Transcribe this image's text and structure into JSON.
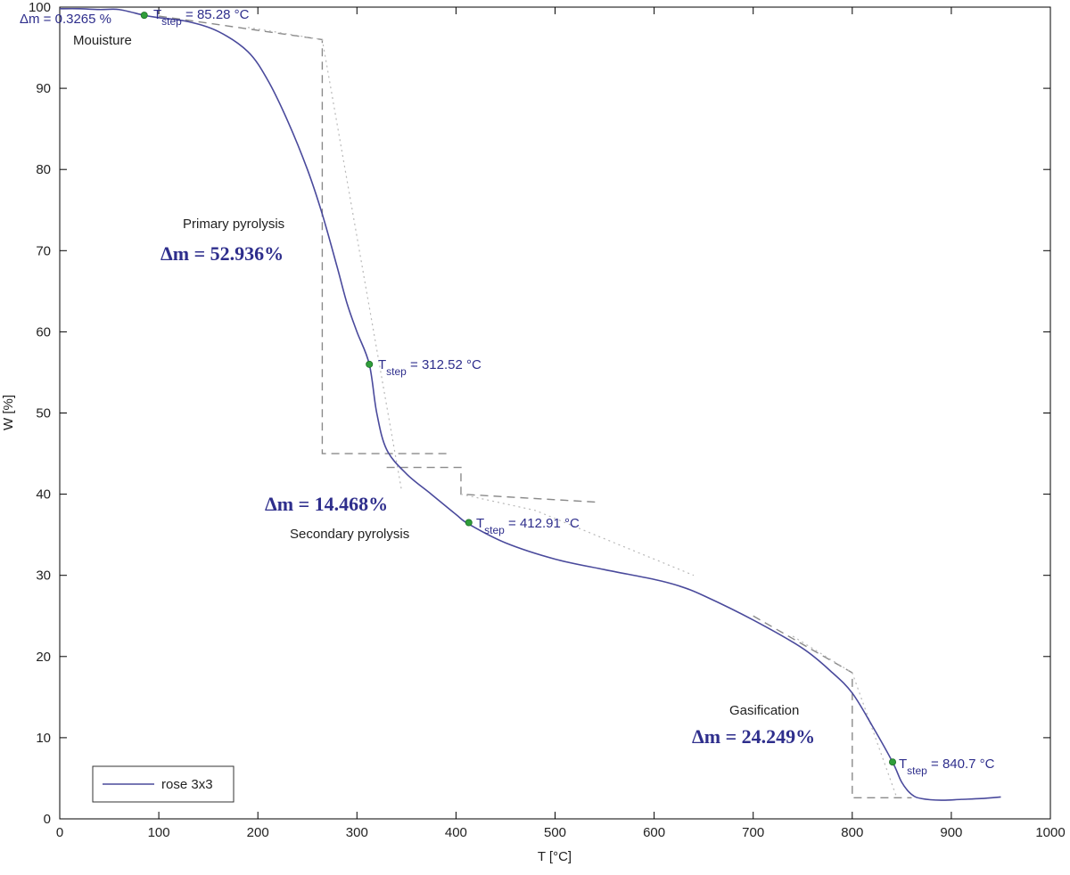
{
  "chart_data": {
    "type": "line",
    "xlabel": "T [°C]",
    "ylabel": "W [%]",
    "xlim": [
      0,
      1000
    ],
    "ylim": [
      0,
      100
    ],
    "xticks": [
      0,
      100,
      200,
      300,
      400,
      500,
      600,
      700,
      800,
      900,
      1000
    ],
    "yticks": [
      0,
      10,
      20,
      30,
      40,
      50,
      60,
      70,
      80,
      90,
      100
    ],
    "grid": false,
    "legend_position": "bottom-left",
    "series": [
      {
        "name": "rose 3x3",
        "color": "#4a4a9c",
        "x": [
          0,
          20,
          40,
          60,
          85,
          100,
          130,
          160,
          190,
          210,
          230,
          250,
          265,
          280,
          290,
          300,
          312.5,
          320,
          330,
          350,
          375,
          400,
          413,
          450,
          500,
          550,
          600,
          625,
          650,
          700,
          750,
          780,
          800,
          820,
          840.7,
          850,
          860,
          870,
          890,
          910,
          930,
          950
        ],
        "y": [
          99.8,
          99.8,
          99.7,
          99.7,
          99.0,
          98.7,
          98.2,
          97.0,
          94.5,
          91.0,
          86.0,
          80.0,
          74.5,
          68.0,
          63.5,
          60.0,
          56.0,
          50.0,
          45.5,
          42.5,
          40.0,
          37.5,
          36.3,
          34.0,
          32.0,
          30.7,
          29.5,
          28.7,
          27.5,
          24.5,
          21.0,
          18.0,
          15.5,
          11.5,
          7.0,
          4.5,
          3.0,
          2.5,
          2.3,
          2.4,
          2.5,
          2.7
        ]
      }
    ],
    "step_points": [
      {
        "x": 85.28,
        "y": 99.0,
        "label": "85.28 °C"
      },
      {
        "x": 312.52,
        "y": 56.0,
        "label": "312.52 °C"
      },
      {
        "x": 412.91,
        "y": 36.5,
        "label": "412.91 °C"
      },
      {
        "x": 840.7,
        "y": 7.0,
        "label": "840.7 °C"
      }
    ],
    "step_guides": [
      {
        "x": [
          100,
          265,
          265,
          265,
          395
        ],
        "y": [
          98.9,
          96.0,
          96.0,
          45.0,
          45.0
        ]
      },
      {
        "x": [
          330,
          405,
          405,
          405,
          545
        ],
        "y": [
          43.3,
          43.3,
          43.3,
          40.0,
          39.0
        ]
      },
      {
        "x": [
          700,
          800,
          800,
          800,
          860
        ],
        "y": [
          25.0,
          18.0,
          18.0,
          2.6,
          2.6
        ]
      }
    ],
    "step_slopes": [
      {
        "x": [
          190,
          265,
          345
        ],
        "y": [
          97.5,
          96.0,
          40.5
        ]
      },
      {
        "x": [
          405,
          480,
          640
        ],
        "y": [
          40.0,
          38.0,
          30.0
        ]
      },
      {
        "x": [
          740,
          800,
          845
        ],
        "y": [
          22.5,
          18.0,
          2.6
        ]
      }
    ],
    "annotations": {
      "tstep_symbol": "T",
      "tstep_sub": "step",
      "tstep_eq": " = ",
      "moisture_dm": "Δm = 0.3265 %",
      "moisture_label": "Mouisture",
      "primary_label": "Primary pyrolysis",
      "primary_dm": "Δm = 52.936%",
      "secondary_label": "Secondary pyrolysis",
      "secondary_dm": "Δm = 14.468%",
      "gasification_label": "Gasification",
      "gasification_dm": "Δm = 24.249%"
    }
  }
}
